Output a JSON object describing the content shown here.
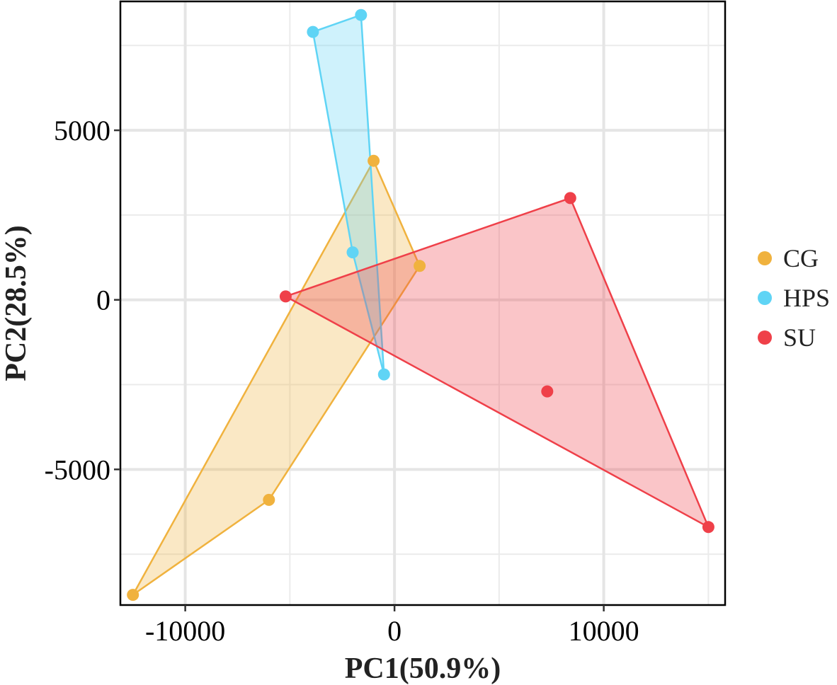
{
  "chart_data": {
    "type": "scatter",
    "xlabel": "PC1(50.9%)",
    "ylabel": "PC2(28.5%)",
    "xlim": [
      -13100,
      15800
    ],
    "ylim": [
      -9000,
      8800
    ],
    "x_ticks": [
      -10000,
      0,
      10000
    ],
    "x_tick_labels": [
      "-10000",
      "0",
      "10000"
    ],
    "y_ticks": [
      -5000,
      0,
      5000
    ],
    "y_tick_labels": [
      "-5000",
      "0",
      "5000"
    ],
    "x_minor_gridlines": [
      -5000,
      5000,
      15000
    ],
    "y_minor_gridlines": [
      -7500,
      -2500,
      2500,
      7500
    ],
    "grid": true,
    "legend_position": "right",
    "series": [
      {
        "name": "CG",
        "color": "#F0B23E",
        "fill_opacity": 0.3,
        "points": [
          {
            "x": -1000,
            "y": 4100
          },
          {
            "x": 1200,
            "y": 1000
          },
          {
            "x": -6000,
            "y": -5900
          },
          {
            "x": -12500,
            "y": -8700
          }
        ]
      },
      {
        "name": "HPS",
        "color": "#5FD4F5",
        "fill_opacity": 0.3,
        "points": [
          {
            "x": -3900,
            "y": 7900
          },
          {
            "x": -1600,
            "y": 8400
          },
          {
            "x": -2000,
            "y": 1400
          },
          {
            "x": -500,
            "y": -2200
          }
        ]
      },
      {
        "name": "SU",
        "color": "#EF4049",
        "fill_opacity": 0.3,
        "points": [
          {
            "x": -5200,
            "y": 100
          },
          {
            "x": 8400,
            "y": 3000
          },
          {
            "x": 7300,
            "y": -2700
          },
          {
            "x": 15000,
            "y": -6700
          }
        ]
      }
    ]
  }
}
